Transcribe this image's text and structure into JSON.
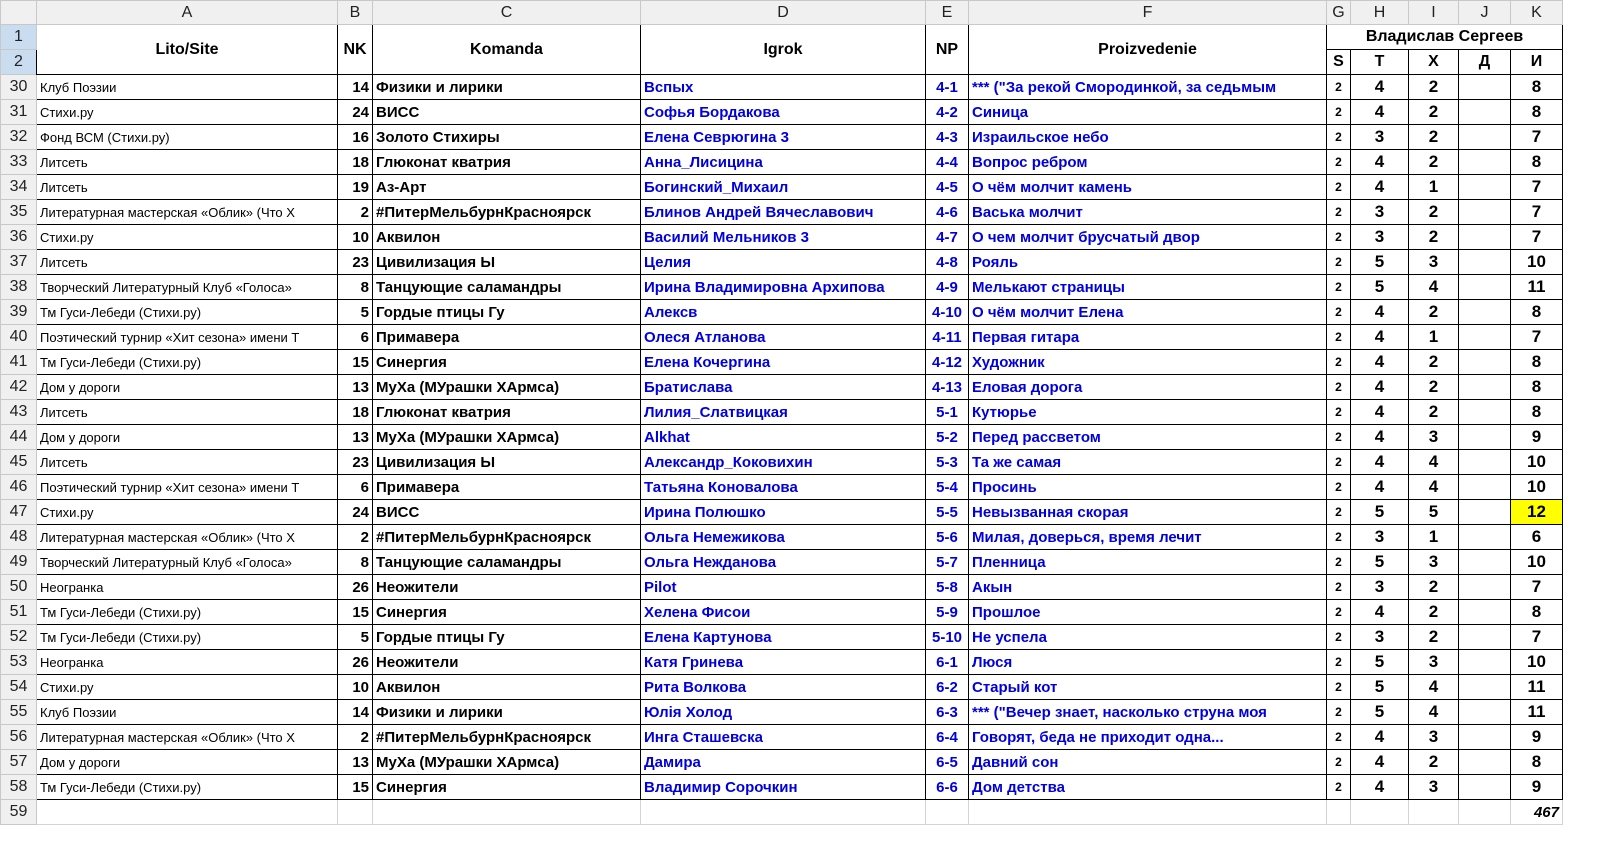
{
  "columns": [
    "A",
    "B",
    "C",
    "D",
    "E",
    "F",
    "G",
    "H",
    "I",
    "J",
    "K"
  ],
  "header": {
    "row_labels": [
      "1",
      "2"
    ],
    "lito": "Lito/Site",
    "nk": "NK",
    "komanda": "Komanda",
    "igrok": "Igrok",
    "np": "NP",
    "proizv": "Proizvedenie",
    "judge": "Владислав Сергеев",
    "sub": [
      "S",
      "Т",
      "Х",
      "Д",
      "И"
    ]
  },
  "highlight_color": "#ffff00",
  "rows": [
    [
      "30",
      "Клуб Поэзии",
      "14",
      "Физики и лирики",
      "Вспых",
      "4-1",
      "*** (\"За рекой Смородинкой, за седьмым",
      "2",
      "4",
      "2",
      "",
      "8"
    ],
    [
      "31",
      "Стихи.ру",
      "24",
      "ВИСС",
      "Софья Бордакова",
      "4-2",
      "Синица",
      "2",
      "4",
      "2",
      "",
      "8"
    ],
    [
      "32",
      "Фонд ВСМ (Стихи.ру)",
      "16",
      "Золото Стихиры",
      "Елена Севрюгина 3",
      "4-3",
      "Израильское небо",
      "2",
      "3",
      "2",
      "",
      "7"
    ],
    [
      "33",
      "Литсеть",
      "18",
      "Глюконат кватрия",
      "Анна_Лисицина",
      "4-4",
      "Вопрос ребром",
      "2",
      "4",
      "2",
      "",
      "8"
    ],
    [
      "34",
      "Литсеть",
      "19",
      "Аз-Арт",
      "Богинский_Михаил",
      "4-5",
      "О чём молчит камень",
      "2",
      "4",
      "1",
      "",
      "7"
    ],
    [
      "35",
      "Литературная мастерская «Облик» (Что Х",
      "2",
      "#ПитерМельбурнКрасноярск",
      "Блинов Андрей Вячеславович",
      "4-6",
      "Васька молчит",
      "2",
      "3",
      "2",
      "",
      "7"
    ],
    [
      "36",
      "Стихи.ру",
      "10",
      "Аквилон",
      "Василий Мельников 3",
      "4-7",
      "О чем молчит брусчатый двор",
      "2",
      "3",
      "2",
      "",
      "7"
    ],
    [
      "37",
      "Литсеть",
      "23",
      "Цивилизация Ы",
      "Целия",
      "4-8",
      "Рояль",
      "2",
      "5",
      "3",
      "",
      "10"
    ],
    [
      "38",
      "Творческий Литературный Клуб «Голоса»",
      "8",
      "Танцующие саламандры",
      "Ирина Владимировна Архипова",
      "4-9",
      "Мелькают страницы",
      "2",
      "5",
      "4",
      "",
      "11"
    ],
    [
      "39",
      "Тм Гуси-Лебеди (Стихи.ру)",
      "5",
      "Гордые птицы Гу",
      "Алексв",
      "4-10",
      "О чём молчит Елена",
      "2",
      "4",
      "2",
      "",
      "8"
    ],
    [
      "40",
      "Поэтический турнир «Хит сезона» имени Т",
      "6",
      "Примавера",
      "Олеся Атланова",
      "4-11",
      "Первая гитара",
      "2",
      "4",
      "1",
      "",
      "7"
    ],
    [
      "41",
      "Тм Гуси-Лебеди (Стихи.ру)",
      "15",
      "Синергия",
      "Елена Кочергина",
      "4-12",
      "Художник",
      "2",
      "4",
      "2",
      "",
      "8"
    ],
    [
      "42",
      "Дом у дороги",
      "13",
      "МуХа (МУрашки ХАрмса)",
      "Братислава",
      "4-13",
      "Еловая дорога",
      "2",
      "4",
      "2",
      "",
      "8"
    ],
    [
      "43",
      "Литсеть",
      "18",
      "Глюконат кватрия",
      "Лилия_Слатвицкая",
      "5-1",
      "Кутюрье",
      "2",
      "4",
      "2",
      "",
      "8"
    ],
    [
      "44",
      "Дом у дороги",
      "13",
      "МуХа (МУрашки ХАрмса)",
      "Alkhat",
      "5-2",
      "Перед рассветом",
      "2",
      "4",
      "3",
      "",
      "9"
    ],
    [
      "45",
      "Литсеть",
      "23",
      "Цивилизация Ы",
      "Александр_Коковихин",
      "5-3",
      "Та же самая",
      "2",
      "4",
      "4",
      "",
      "10"
    ],
    [
      "46",
      "Поэтический турнир «Хит сезона» имени Т",
      "6",
      "Примавера",
      "Татьяна Коновалова",
      "5-4",
      "Просинь",
      "2",
      "4",
      "4",
      "",
      "10"
    ],
    [
      "47",
      "Стихи.ру",
      "24",
      "ВИСС",
      "Ирина Полюшко",
      "5-5",
      "Невызванная скорая",
      "2",
      "5",
      "5",
      "",
      "12"
    ],
    [
      "48",
      "Литературная мастерская «Облик» (Что Х",
      "2",
      "#ПитерМельбурнКрасноярск",
      "Ольга Немежикова",
      "5-6",
      "Милая, доверься, время лечит",
      "2",
      "3",
      "1",
      "",
      "6"
    ],
    [
      "49",
      "Творческий Литературный Клуб «Голоса»",
      "8",
      "Танцующие саламандры",
      "Ольга Нежданова",
      "5-7",
      "Пленница",
      "2",
      "5",
      "3",
      "",
      "10"
    ],
    [
      "50",
      "Неогранка",
      "26",
      "Неожители",
      "Pilot",
      "5-8",
      "Акын",
      "2",
      "3",
      "2",
      "",
      "7"
    ],
    [
      "51",
      "Тм Гуси-Лебеди (Стихи.ру)",
      "15",
      "Синергия",
      "Хелена Фисои",
      "5-9",
      "Прошлое",
      "2",
      "4",
      "2",
      "",
      "8"
    ],
    [
      "52",
      "Тм Гуси-Лебеди (Стихи.ру)",
      "5",
      "Гордые птицы Гу",
      "Елена Картунова",
      "5-10",
      "Не успела",
      "2",
      "3",
      "2",
      "",
      "7"
    ],
    [
      "53",
      "Неогранка",
      "26",
      "Неожители",
      "Катя Гринева",
      "6-1",
      "Люся",
      "2",
      "5",
      "3",
      "",
      "10"
    ],
    [
      "54",
      "Стихи.ру",
      "10",
      "Аквилон",
      "Рита Волкова",
      "6-2",
      "Старый кот",
      "2",
      "5",
      "4",
      "",
      "11"
    ],
    [
      "55",
      "Клуб Поэзии",
      "14",
      "Физики и лирики",
      "Юлія Холод",
      "6-3",
      "*** (\"Вечер знает, насколько струна моя",
      "2",
      "5",
      "4",
      "",
      "11"
    ],
    [
      "56",
      "Литературная мастерская «Облик» (Что Х",
      "2",
      "#ПитерМельбурнКрасноярск",
      "Инга Сташевска",
      "6-4",
      "Говорят, беда не приходит одна...",
      "2",
      "4",
      "3",
      "",
      "9"
    ],
    [
      "57",
      "Дом у дороги",
      "13",
      "МуХа (МУрашки ХАрмса)",
      "Дамира",
      "6-5",
      "Давний сон",
      "2",
      "4",
      "2",
      "",
      "8"
    ],
    [
      "58",
      "Тм Гуси-Лебеди (Стихи.ру)",
      "15",
      "Синергия",
      "Владимир Сорочкин",
      "6-6",
      "Дом детства",
      "2",
      "4",
      "3",
      "",
      "9"
    ]
  ],
  "highlighted_row": "47",
  "total_row": {
    "label": "59",
    "total": "467"
  }
}
